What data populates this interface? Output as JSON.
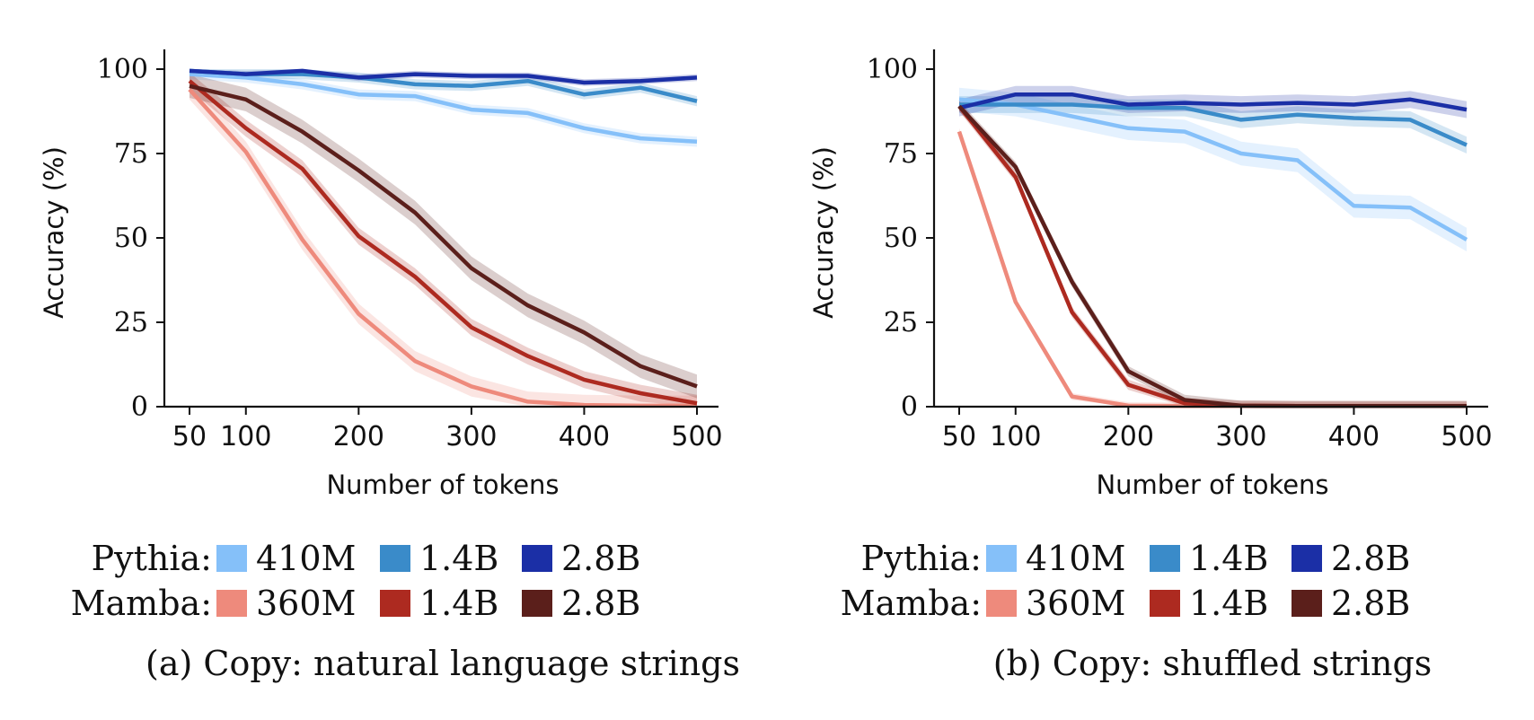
{
  "chart_data": [
    {
      "type": "line",
      "caption": "(a) Copy: natural language strings",
      "xlabel": "Number of tokens",
      "ylabel": "Accuracy (%)",
      "xlim": [
        35,
        545
      ],
      "ylim": [
        0,
        105
      ],
      "xticks": [
        50,
        100,
        200,
        300,
        400,
        500
      ],
      "yticks": [
        0,
        25,
        50,
        75,
        100
      ],
      "grid": false,
      "x": [
        50,
        100,
        150,
        200,
        250,
        300,
        350,
        400,
        450,
        500
      ],
      "series": [
        {
          "group": "Pythia",
          "name": "410M",
          "color": "#85c0f9",
          "band": 1.5,
          "values": [
            98.5,
            97.5,
            95.5,
            92.5,
            92,
            88,
            87,
            82.5,
            79.5,
            78.5
          ]
        },
        {
          "group": "Pythia",
          "name": "1.4B",
          "color": "#3a8bc9",
          "band": 1.5,
          "values": [
            99.5,
            98.5,
            98.5,
            97.5,
            95.5,
            95,
            96.5,
            92.5,
            94.5,
            90.5
          ]
        },
        {
          "group": "Pythia",
          "name": "2.8B",
          "color": "#1b2fa6",
          "band": 1,
          "values": [
            99.5,
            98.5,
            99.5,
            97.5,
            98.5,
            98,
            98,
            96,
            96.5,
            97.5
          ]
        },
        {
          "group": "Mamba",
          "name": "360M",
          "color": "#ee8a7c",
          "band": 3,
          "values": [
            94,
            75.5,
            49.5,
            27.5,
            13.5,
            6,
            1.5,
            0.5,
            0.3,
            0.3
          ]
        },
        {
          "group": "Mamba",
          "name": "1.4B",
          "color": "#ad2a20",
          "band": 2.5,
          "values": [
            96.5,
            82.5,
            70.5,
            50.5,
            38.5,
            23.5,
            15,
            8,
            4,
            1
          ]
        },
        {
          "group": "Mamba",
          "name": "2.8B",
          "color": "#5b1f1b",
          "band": 3.5,
          "values": [
            95,
            91,
            81.5,
            70,
            57.5,
            41,
            30,
            22,
            12,
            6
          ]
        }
      ]
    },
    {
      "type": "line",
      "caption": "(b) Copy: shuffled strings",
      "xlabel": "Number of tokens",
      "ylabel": "Accuracy (%)",
      "xlim": [
        35,
        545
      ],
      "ylim": [
        0,
        105
      ],
      "xticks": [
        50,
        100,
        200,
        300,
        400,
        500
      ],
      "yticks": [
        0,
        25,
        50,
        75,
        100
      ],
      "grid": false,
      "series": [
        {
          "group": "Pythia",
          "name": "410M",
          "color": "#85c0f9",
          "band": 3.5,
          "x": [
            50,
            100,
            150,
            200,
            250,
            300,
            350,
            400,
            450,
            500
          ],
          "values": [
            91,
            89.5,
            86,
            82.5,
            81.5,
            75,
            73,
            59.5,
            59,
            49.5
          ]
        },
        {
          "group": "Pythia",
          "name": "1.4B",
          "color": "#3a8bc9",
          "band": 2.5,
          "x": [
            50,
            100,
            150,
            200,
            250,
            300,
            350,
            400,
            450,
            500
          ],
          "values": [
            89.5,
            89.5,
            89.5,
            88.5,
            88.5,
            85,
            86.5,
            85.5,
            85,
            77.5
          ]
        },
        {
          "group": "Pythia",
          "name": "2.8B",
          "color": "#1b2fa6",
          "band": 2.5,
          "x": [
            50,
            100,
            150,
            200,
            250,
            300,
            350,
            400,
            450,
            500
          ],
          "values": [
            88.5,
            92.5,
            92.5,
            89.5,
            90,
            89.5,
            90,
            89.5,
            91,
            88
          ]
        },
        {
          "group": "Mamba",
          "name": "360M",
          "color": "#ee8a7c",
          "band": 1,
          "x": [
            50,
            100,
            150,
            200,
            250,
            300,
            350,
            400,
            450,
            500
          ],
          "values": [
            81.5,
            31,
            3,
            0.3,
            0.2,
            0.2,
            0.2,
            0.2,
            0.2,
            0.2
          ]
        },
        {
          "group": "Mamba",
          "name": "1.4B",
          "color": "#ad2a20",
          "band": 1.5,
          "x": [
            50,
            100,
            150,
            200,
            250,
            300,
            350,
            400,
            450,
            500
          ],
          "values": [
            89,
            68,
            28,
            6.5,
            1,
            0.3,
            0.2,
            0.2,
            0.2,
            0.2
          ]
        },
        {
          "group": "Mamba",
          "name": "2.8B",
          "color": "#5b1f1b",
          "band": 1.5,
          "x": [
            50,
            100,
            150,
            200,
            250,
            300,
            350,
            400,
            450,
            500
          ],
          "values": [
            89,
            71,
            37,
            10.5,
            2,
            0.3,
            0.2,
            0.2,
            0.2,
            0.2
          ]
        }
      ]
    }
  ],
  "legend": {
    "rows": [
      {
        "label": "Pythia:",
        "items": [
          {
            "name": "410M",
            "color": "#85c0f9"
          },
          {
            "name": "1.4B",
            "color": "#3a8bc9"
          },
          {
            "name": "2.8B",
            "color": "#1b2fa6"
          }
        ]
      },
      {
        "label": "Mamba:",
        "items": [
          {
            "name": "360M",
            "color": "#ee8a7c"
          },
          {
            "name": "1.4B",
            "color": "#ad2a20"
          },
          {
            "name": "2.8B",
            "color": "#5b1f1b"
          }
        ]
      }
    ]
  }
}
